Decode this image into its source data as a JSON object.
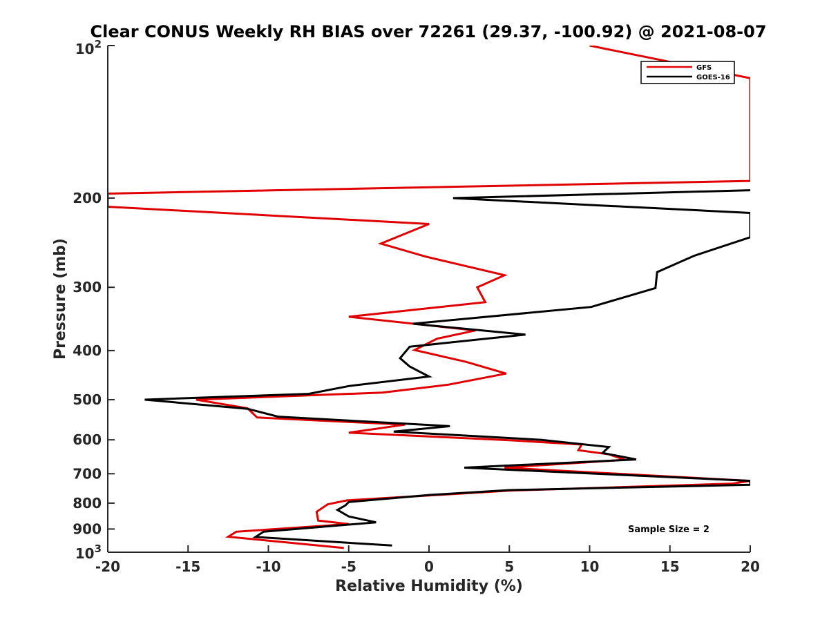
{
  "chart_data": {
    "type": "line",
    "title": "Clear CONUS Weekly RH BIAS over 72261 (29.37, -100.92) @ 2021-08-07",
    "xlabel": "Relative Humidity (%)",
    "ylabel": "Pressure (mb)",
    "xlim": [
      -20,
      20
    ],
    "ylim": [
      100,
      1000
    ],
    "y_scale": "log",
    "y_reversed": true,
    "x_ticks": [
      -20,
      -15,
      -10,
      -5,
      0,
      5,
      10,
      15,
      20
    ],
    "x_tick_labels": [
      "-20",
      "-15",
      "-10",
      "-5",
      "0",
      "5",
      "10",
      "15",
      "20"
    ],
    "y_ticks": [
      200,
      300,
      400,
      500,
      600,
      700,
      800,
      900
    ],
    "y_tick_labels": [
      "200",
      "300",
      "400",
      "500",
      "600",
      "700",
      "800",
      "900"
    ],
    "y_ends": {
      "top": {
        "value": 100,
        "base": "10",
        "exp": "2"
      },
      "bottom": {
        "value": 1000,
        "base": "10",
        "exp": "3"
      }
    },
    "grid": false,
    "legend_position": "top-right",
    "series": [
      {
        "name": "GFS",
        "color": "#e00000",
        "points": [
          [
            10,
            100
          ],
          [
            20,
            116
          ],
          [
            20,
            185
          ],
          [
            -20,
            196
          ],
          [
            -20,
            208
          ],
          [
            0,
            225
          ],
          [
            -3,
            246
          ],
          [
            -0.2,
            261
          ],
          [
            4.7,
            284
          ],
          [
            3,
            300
          ],
          [
            3.5,
            321
          ],
          [
            -5,
            343
          ],
          [
            2.9,
            365
          ],
          [
            0.5,
            379
          ],
          [
            -0.9,
            399
          ],
          [
            2.3,
            421
          ],
          [
            4.8,
            444
          ],
          [
            1.2,
            467
          ],
          [
            -2.9,
            484
          ],
          [
            -14.5,
            500
          ],
          [
            -11.3,
            520
          ],
          [
            -10.7,
            542
          ],
          [
            -1.5,
            560
          ],
          [
            -5,
            581
          ],
          [
            5,
            601
          ],
          [
            9.5,
            613
          ],
          [
            9.3,
            629
          ],
          [
            11.2,
            641
          ],
          [
            12.2,
            657
          ],
          [
            4.7,
            681
          ],
          [
            20,
            723
          ],
          [
            18.9,
            732
          ],
          [
            5,
            756
          ],
          [
            -5.1,
            790
          ],
          [
            -6.3,
            804
          ],
          [
            -7,
            832
          ],
          [
            -6.9,
            866
          ],
          [
            -5,
            880
          ],
          [
            -12,
            911
          ],
          [
            -12.5,
            932
          ],
          [
            -5.3,
            981
          ]
        ]
      },
      {
        "name": "GOES-16",
        "color": "#000000",
        "points": [
          [
            20,
            193
          ],
          [
            1.5,
            200
          ],
          [
            20,
            214
          ],
          [
            20,
            239
          ],
          [
            16.5,
            260
          ],
          [
            14.2,
            280
          ],
          [
            14.1,
            301
          ],
          [
            10.1,
            328
          ],
          [
            -1,
            354
          ],
          [
            6,
            372
          ],
          [
            -1.2,
            393
          ],
          [
            -1.8,
            414
          ],
          [
            -1.2,
            430
          ],
          [
            0,
            450
          ],
          [
            -5,
            470
          ],
          [
            -7.5,
            487
          ],
          [
            -17.7,
            500
          ],
          [
            -11.3,
            521
          ],
          [
            -9.4,
            540
          ],
          [
            1.3,
            564
          ],
          [
            -2.2,
            578
          ],
          [
            7,
            600
          ],
          [
            11.2,
            620
          ],
          [
            10.8,
            637
          ],
          [
            12.9,
            656
          ],
          [
            2.2,
            681
          ],
          [
            20,
            723
          ],
          [
            20,
            736
          ],
          [
            5,
            754
          ],
          [
            0,
            771
          ],
          [
            -5,
            796
          ],
          [
            -5.2,
            808
          ],
          [
            -5.7,
            825
          ],
          [
            -5,
            850
          ],
          [
            -3.3,
            873
          ],
          [
            -10.3,
            911
          ],
          [
            -10.8,
            933
          ],
          [
            -2.3,
            970
          ]
        ]
      }
    ],
    "annotations": {
      "sample_size": "Sample Size = 2"
    }
  }
}
